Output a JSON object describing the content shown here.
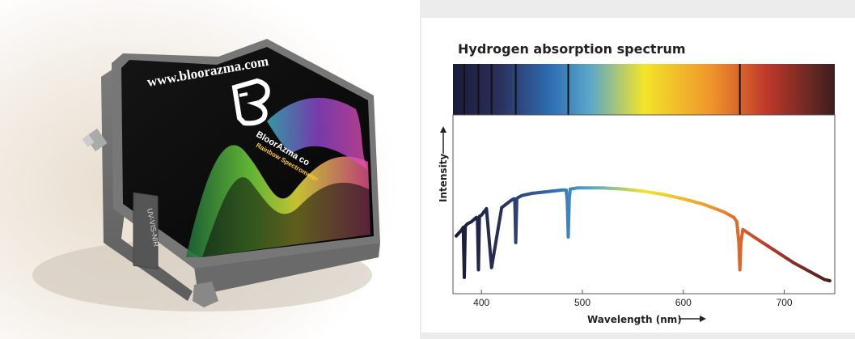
{
  "product": {
    "brand_url": "www.bloorazma.com",
    "brand_name": "BloorAzma co",
    "brand_sub": "Rainbow Spectrometer",
    "side_label": "UV-VIS-NIR"
  },
  "chart_data": {
    "type": "line",
    "title": "Hydrogen absorption spectrum",
    "xlabel": "Wavelength (nm)",
    "ylabel": "Intensity",
    "xlim": [
      375,
      750
    ],
    "ylim": [
      0,
      1
    ],
    "x_ticks": [
      400,
      500,
      600,
      700
    ],
    "grid": false,
    "legend": "none",
    "absorption_lines_nm": [
      383,
      397,
      410,
      434,
      486,
      656
    ],
    "series": [
      {
        "x": [
          375,
          380,
          382,
          383,
          384,
          386,
          390,
          395,
          396,
          397,
          398,
          400,
          405,
          410,
          420,
          430,
          432,
          433,
          434,
          435,
          436,
          440,
          450,
          460,
          470,
          480,
          484,
          485,
          486,
          487,
          488,
          495,
          500,
          510,
          520,
          540,
          560,
          580,
          600,
          620,
          640,
          650,
          653,
          655,
          656,
          657,
          659,
          662,
          670,
          680,
          690,
          700,
          710,
          720,
          730,
          740,
          745
        ],
        "values": [
          0.41,
          0.46,
          0.49,
          0.03,
          0.5,
          0.52,
          0.54,
          0.58,
          0.57,
          0.1,
          0.59,
          0.6,
          0.66,
          0.12,
          0.67,
          0.74,
          0.75,
          0.75,
          0.35,
          0.75,
          0.76,
          0.78,
          0.8,
          0.81,
          0.82,
          0.83,
          0.83,
          0.73,
          0.4,
          0.75,
          0.84,
          0.85,
          0.85,
          0.85,
          0.85,
          0.84,
          0.82,
          0.79,
          0.75,
          0.7,
          0.63,
          0.58,
          0.54,
          0.35,
          0.1,
          0.35,
          0.47,
          0.45,
          0.4,
          0.34,
          0.28,
          0.22,
          0.16,
          0.11,
          0.06,
          0.01,
          0.0
        ]
      }
    ],
    "colors": {
      "band_start": "#1a1a3a",
      "violet": "#2b2f5a",
      "blue": "#2f6fb5",
      "cyan": "#5ba8c9",
      "yellow": "#f2e52a",
      "orange": "#f0932b",
      "red": "#c0392b",
      "dark_red": "#3a1e1e"
    }
  }
}
